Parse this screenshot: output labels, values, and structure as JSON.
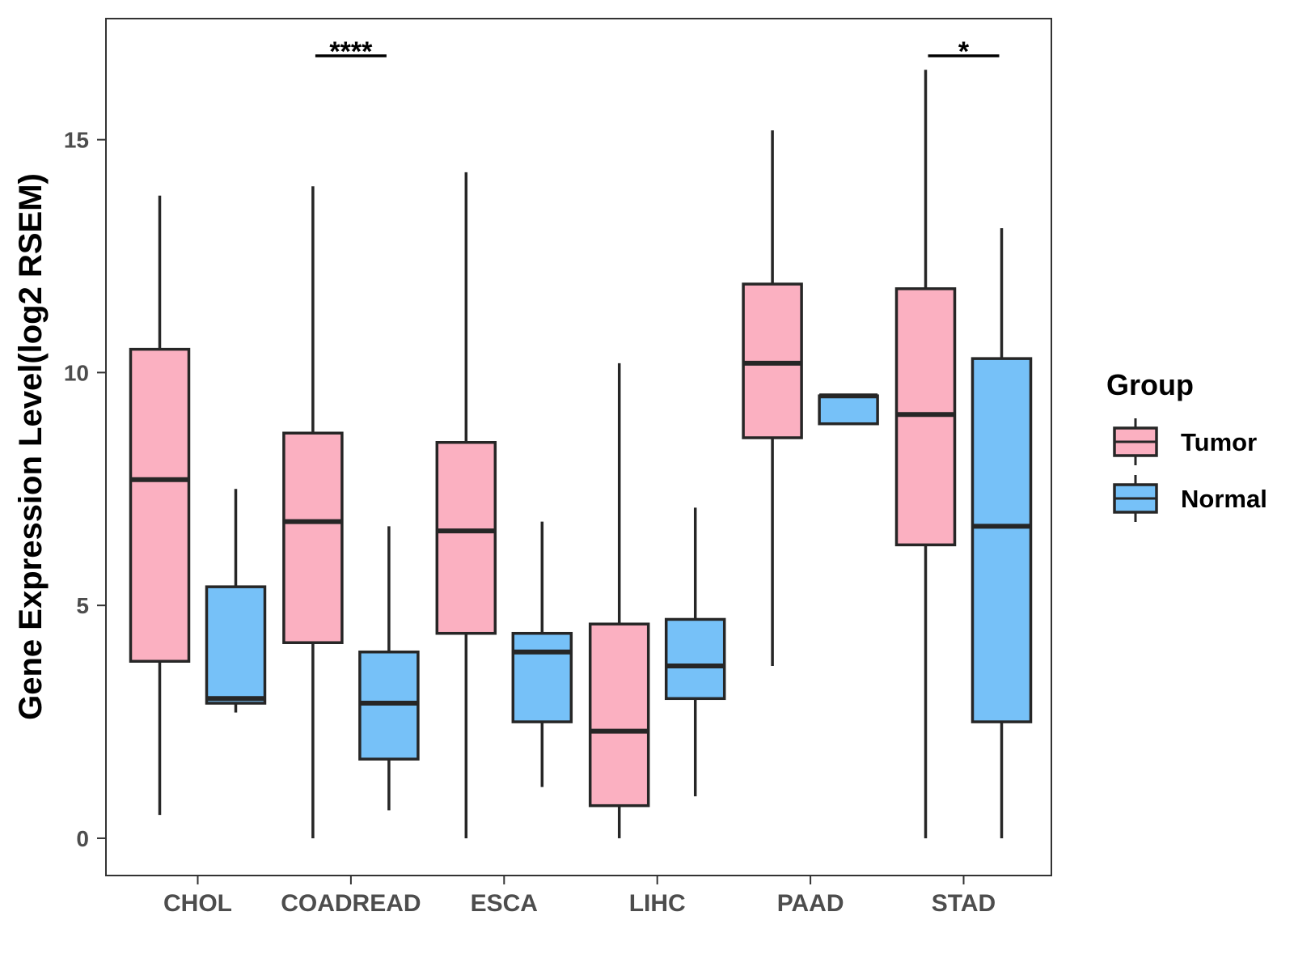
{
  "chart_data": {
    "type": "boxplot",
    "title": "",
    "xlabel": "",
    "ylabel": "Gene Expression Level(log2 RSEM)",
    "ylim": [
      -0.8,
      17.6
    ],
    "yticks": [
      0,
      5,
      10,
      15
    ],
    "ytick_labels": [
      "0",
      "5",
      "10",
      "15"
    ],
    "categories": [
      "CHOL",
      "COADREAD",
      "ESCA",
      "LIHC",
      "PAAD",
      "STAD"
    ],
    "legend": {
      "title": "Group",
      "position": "right",
      "entries": [
        {
          "name": "Tumor",
          "color": "#fbb0c1"
        },
        {
          "name": "Normal",
          "color": "#76c1f8"
        }
      ]
    },
    "series": [
      {
        "name": "Tumor",
        "color": "#fbb0c1",
        "boxes": [
          {
            "category": "CHOL",
            "min": 0.5,
            "q1": 3.8,
            "median": 7.7,
            "q3": 10.5,
            "max": 13.8
          },
          {
            "category": "COADREAD",
            "min": 0.0,
            "q1": 4.2,
            "median": 6.8,
            "q3": 8.7,
            "max": 14.0
          },
          {
            "category": "ESCA",
            "min": 0.0,
            "q1": 4.4,
            "median": 6.6,
            "q3": 8.5,
            "max": 14.3
          },
          {
            "category": "LIHC",
            "min": 0.0,
            "q1": 0.7,
            "median": 2.3,
            "q3": 4.6,
            "max": 10.2
          },
          {
            "category": "PAAD",
            "min": 3.7,
            "q1": 8.6,
            "median": 10.2,
            "q3": 11.9,
            "max": 15.2
          },
          {
            "category": "STAD",
            "min": 0.0,
            "q1": 6.3,
            "median": 9.1,
            "q3": 11.8,
            "max": 16.5
          }
        ]
      },
      {
        "name": "Normal",
        "color": "#76c1f8",
        "boxes": [
          {
            "category": "CHOL",
            "min": 2.7,
            "q1": 2.9,
            "median": 3.0,
            "q3": 5.4,
            "max": 7.5
          },
          {
            "category": "COADREAD",
            "min": 0.6,
            "q1": 1.7,
            "median": 2.9,
            "q3": 4.0,
            "max": 6.7
          },
          {
            "category": "ESCA",
            "min": 1.1,
            "q1": 2.5,
            "median": 4.0,
            "q3": 4.4,
            "max": 6.8
          },
          {
            "category": "LIHC",
            "min": 0.9,
            "q1": 3.0,
            "median": 3.7,
            "q3": 4.7,
            "max": 7.1
          },
          {
            "category": "PAAD",
            "min": 8.9,
            "q1": 8.9,
            "median": 9.5,
            "q3": 9.5,
            "max": 9.5
          },
          {
            "category": "STAD",
            "min": 0.0,
            "q1": 2.5,
            "median": 6.7,
            "q3": 10.3,
            "max": 13.1
          }
        ]
      }
    ],
    "annotations": [
      {
        "category": "COADREAD",
        "label": "****",
        "y": 16.8
      },
      {
        "category": "STAD",
        "label": "*",
        "y": 16.8
      }
    ]
  }
}
